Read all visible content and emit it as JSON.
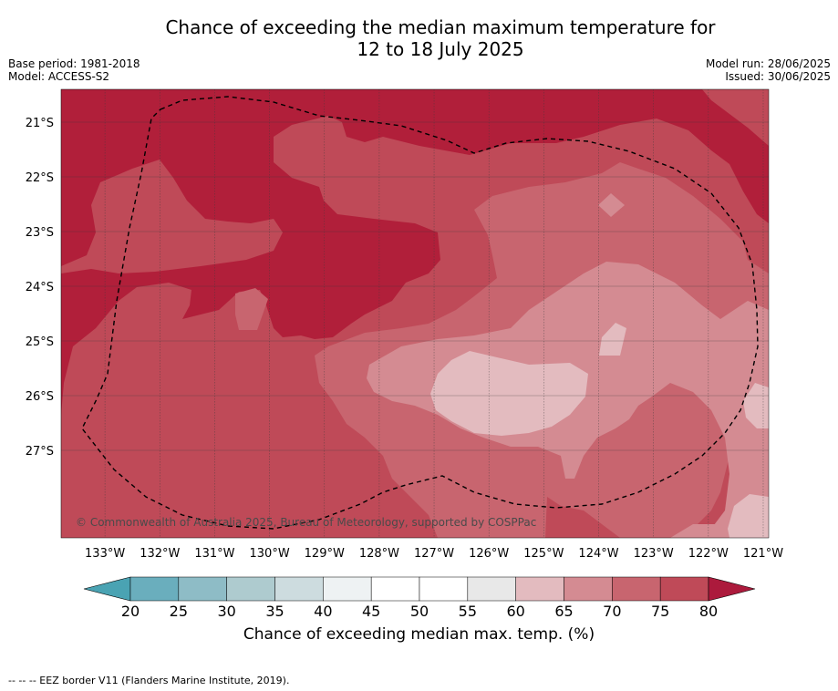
{
  "title": {
    "line1": "Chance of exceeding the median maximum temperature for",
    "line2": "12 to 18 July 2025"
  },
  "meta": {
    "base_period": "Base period: 1981-2018",
    "model": "Model: ACCESS-S2",
    "model_run": "Model run: 28/06/2025",
    "issued": "Issued: 30/06/2025"
  },
  "map": {
    "lon_range": [
      -133.8,
      -120.9
    ],
    "lat_range": [
      -28.6,
      -20.4
    ],
    "lat_ticks": [
      "21°S",
      "22°S",
      "23°S",
      "24°S",
      "25°S",
      "26°S",
      "27°S"
    ],
    "lat_values": [
      -21,
      -22,
      -23,
      -24,
      -25,
      -26,
      -27
    ],
    "lon_ticks": [
      "133°W",
      "132°W",
      "131°W",
      "130°W",
      "129°W",
      "128°W",
      "127°W",
      "126°W",
      "125°W",
      "124°W",
      "123°W",
      "122°W",
      "121°W"
    ],
    "lon_values": [
      -133,
      -132,
      -131,
      -130,
      -129,
      -128,
      -127,
      -126,
      -125,
      -124,
      -123,
      -122,
      -121
    ],
    "copyright": "© Commonwealth of Australia 2025, Bureau of Meteorology, supported by COSPPac",
    "colors": {
      "lt60": "#e3bbbf",
      "b60_65": "#e3bbbf",
      "b65_70": "#d48b92",
      "b70_75": "#c8656f",
      "b75_80": "#bf4a58",
      "gt80": "#b11f3a"
    }
  },
  "colorbar": {
    "title": "Chance of exceeding median max. temp. (%)",
    "ticks": [
      "20",
      "25",
      "30",
      "35",
      "40",
      "45",
      "50",
      "55",
      "60",
      "65",
      "70",
      "75",
      "80"
    ],
    "colors": [
      "#6aaebd",
      "#8ebcc6",
      "#aecbcf",
      "#cddcdf",
      "#eef2f3",
      "#ffffff",
      "#ffffff",
      "#e8e8e8",
      "#e3bbbf",
      "#d48b92",
      "#c8656f",
      "#bf4a58"
    ],
    "low_color": "#4aa3b3",
    "high_color": "#ac1a3c"
  },
  "footer": "--  --  -- EEZ border V11 (Flanders Marine Institute, 2019)."
}
